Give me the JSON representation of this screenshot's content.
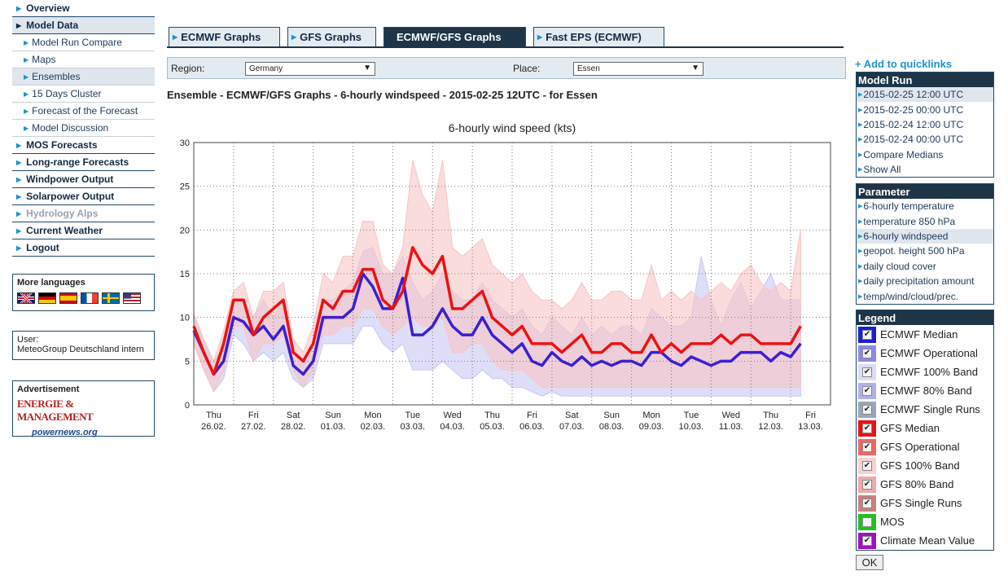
{
  "nav": {
    "items": [
      {
        "label": "Overview",
        "type": "main"
      },
      {
        "label": "Model Data",
        "type": "main",
        "active": true
      },
      {
        "label": "Model Run Compare",
        "type": "sub"
      },
      {
        "label": "Maps",
        "type": "sub"
      },
      {
        "label": "Ensembles",
        "type": "sub",
        "active": true
      },
      {
        "label": "15 Days Cluster",
        "type": "sub"
      },
      {
        "label": "Forecast of the Forecast",
        "type": "sub"
      },
      {
        "label": "Model Discussion",
        "type": "sub"
      },
      {
        "label": "MOS Forecasts",
        "type": "main"
      },
      {
        "label": "Long-range Forecasts",
        "type": "main"
      },
      {
        "label": "Windpower Output",
        "type": "main"
      },
      {
        "label": "Solarpower Output",
        "type": "main"
      },
      {
        "label": "Hydrology Alps",
        "type": "main",
        "disabled": true
      },
      {
        "label": "Current Weather",
        "type": "main"
      },
      {
        "label": "Logout",
        "type": "main"
      }
    ]
  },
  "languages": {
    "title": "More languages",
    "flags": [
      "flag-gb",
      "flag-de",
      "flag-es",
      "flag-fr",
      "flag-se",
      "flag-us"
    ]
  },
  "user": {
    "label": "User:",
    "name": "MeteoGroup Deutschland intern"
  },
  "advertisement": {
    "title": "Advertisement",
    "logo_top": "ENERGIE & MANAGEMENT",
    "logo_bottom": "powernews.org"
  },
  "tabs": [
    {
      "label": "ECMWF Graphs",
      "active": false
    },
    {
      "label": "GFS Graphs",
      "active": false
    },
    {
      "label": "ECMWF/GFS Graphs",
      "active": true
    },
    {
      "label": "Fast EPS (ECMWF)",
      "active": false
    }
  ],
  "selectors": {
    "region_label": "Region:",
    "region_value": "Germany",
    "place_label": "Place:",
    "place_value": "Essen"
  },
  "heading": "Ensemble - ECMWF/GFS Graphs - 6-hourly windspeed - 2015-02-25 12UTC - for Essen",
  "quicklinks": "+ Add to quicklinks",
  "model_run": {
    "title": "Model Run",
    "items": [
      {
        "label": "2015-02-25 12:00 UTC",
        "active": true
      },
      {
        "label": "2015-02-25 00:00 UTC"
      },
      {
        "label": "2015-02-24 12:00 UTC"
      },
      {
        "label": "2015-02-24 00:00 UTC"
      },
      {
        "label": "Compare Medians"
      },
      {
        "label": "Show All"
      }
    ]
  },
  "parameter": {
    "title": "Parameter",
    "items": [
      {
        "label": "6-hourly temperature"
      },
      {
        "label": "temperature 850 hPa"
      },
      {
        "label": "6-hourly windspeed",
        "active": true
      },
      {
        "label": "geopot. height 500 hPa"
      },
      {
        "label": "daily cloud cover"
      },
      {
        "label": "daily precipitation amount"
      },
      {
        "label": "temp/wind/cloud/prec."
      }
    ]
  },
  "legend": {
    "title": "Legend",
    "items": [
      {
        "label": "ECMWF Median",
        "color": "#1f1fd0",
        "checked": true
      },
      {
        "label": "ECMWF Operational",
        "color": "#8a8ae6",
        "checked": true
      },
      {
        "label": "ECMWF 100% Band",
        "color": "#dcdcf8",
        "checked": true
      },
      {
        "label": "ECMWF 80% Band",
        "color": "#b0b0ea",
        "checked": true
      },
      {
        "label": "ECMWF Single Runs",
        "color": "#9aa6b8",
        "checked": true
      },
      {
        "label": "GFS Median",
        "color": "#ee1111",
        "checked": true
      },
      {
        "label": "GFS Operational",
        "color": "#ee6666",
        "checked": true
      },
      {
        "label": "GFS 100% Band",
        "color": "#fad0d0",
        "checked": true
      },
      {
        "label": "GFS 80% Band",
        "color": "#f0a8a8",
        "checked": true
      },
      {
        "label": "GFS Single Runs",
        "color": "#c88080",
        "checked": true
      },
      {
        "label": "MOS",
        "color": "#22c022",
        "checked": false
      },
      {
        "label": "Climate Mean Value",
        "color": "#a010c0",
        "checked": true
      }
    ],
    "ok_label": "OK"
  },
  "chart_data": {
    "type": "line",
    "title": "6-hourly wind speed (kts)",
    "ylim": [
      0,
      30
    ],
    "yticks": [
      0,
      5,
      10,
      15,
      20,
      25,
      30
    ],
    "x_day_labels": [
      {
        "day": "Thu",
        "date": "26.02."
      },
      {
        "day": "Fri",
        "date": "27.02."
      },
      {
        "day": "Sat",
        "date": "28.02."
      },
      {
        "day": "Sun",
        "date": "01.03."
      },
      {
        "day": "Mon",
        "date": "02.03."
      },
      {
        "day": "Tue",
        "date": "03.03."
      },
      {
        "day": "Wed",
        "date": "04.03."
      },
      {
        "day": "Thu",
        "date": "05.03."
      },
      {
        "day": "Fri",
        "date": "06.03."
      },
      {
        "day": "Sat",
        "date": "07.03."
      },
      {
        "day": "Sun",
        "date": "08.03."
      },
      {
        "day": "Mon",
        "date": "09.03."
      },
      {
        "day": "Tue",
        "date": "10.03."
      },
      {
        "day": "Wed",
        "date": "11.03."
      },
      {
        "day": "Thu",
        "date": "12.03."
      },
      {
        "day": "Fri",
        "date": "13.03."
      }
    ],
    "grid": true,
    "series": [
      {
        "name": "ECMWF Median",
        "color": "#3a1fd0",
        "values": [
          8.5,
          6,
          3.5,
          5,
          10,
          9.5,
          8,
          9,
          7.5,
          9,
          4.5,
          3.5,
          5,
          10,
          10,
          10,
          11,
          15,
          13.5,
          11,
          11,
          14.5,
          8,
          8,
          9,
          11,
          9,
          8,
          8,
          10,
          8,
          7,
          6,
          7,
          5,
          4.5,
          6,
          5,
          4.5,
          5.5,
          4.5,
          5,
          4.5,
          5,
          5,
          4.5,
          6,
          6,
          5,
          4.5,
          5.5,
          5,
          4.5,
          5,
          5,
          6,
          6,
          6,
          5,
          6,
          5.5,
          7
        ]
      },
      {
        "name": "GFS Median",
        "color": "#ee1111",
        "values": [
          9,
          6,
          3.5,
          7,
          12,
          12,
          8,
          10,
          11,
          12,
          6,
          5,
          7,
          12,
          11,
          13,
          13,
          15.5,
          15.5,
          12,
          11,
          13,
          18,
          16,
          15,
          17,
          11,
          11,
          12,
          13,
          10,
          9,
          8,
          9,
          7,
          7,
          7,
          6,
          7,
          8,
          6,
          6,
          7,
          7,
          6,
          6,
          8,
          6,
          7,
          6,
          7,
          7,
          7,
          8,
          7,
          8,
          8,
          7,
          7,
          7,
          7,
          9
        ]
      },
      {
        "name": "ECMWF 100% Band",
        "color": "#c8c8f4",
        "low": [
          7,
          4,
          1.5,
          3,
          8,
          7,
          5,
          6,
          5,
          6,
          3,
          2,
          3,
          7,
          7,
          7,
          7,
          9,
          9,
          7,
          6,
          7,
          4,
          4,
          4,
          5,
          4,
          3,
          3,
          4,
          3,
          3,
          2,
          2,
          1.5,
          1,
          1.5,
          1,
          1,
          1,
          1,
          1,
          1,
          1,
          1,
          1,
          1,
          1,
          1,
          1,
          1,
          1,
          1,
          1,
          1,
          1,
          1,
          1,
          1,
          1,
          1,
          1
        ],
        "high": [
          10,
          7.5,
          5,
          6.5,
          12,
          12,
          10,
          12,
          10,
          12,
          6.5,
          5,
          7,
          12,
          12,
          13,
          14,
          17.5,
          18,
          15,
          15,
          17,
          14,
          12,
          13,
          15,
          13,
          12,
          12,
          14,
          12,
          11,
          10,
          11,
          9,
          8,
          10,
          9,
          8,
          10,
          8,
          9,
          8,
          9,
          9,
          8,
          11,
          10,
          9,
          9,
          10,
          17,
          12,
          9,
          12,
          14,
          11,
          13,
          15,
          12,
          12,
          12
        ]
      },
      {
        "name": "GFS 100% Band",
        "color": "#f8c4c4",
        "low": [
          7,
          4,
          1.5,
          4,
          9,
          9,
          5,
          7,
          7,
          8,
          4,
          2,
          4,
          8,
          8,
          9,
          9,
          11,
          11,
          9,
          8,
          9,
          10,
          9,
          9,
          10,
          6,
          6,
          7,
          7,
          5,
          4,
          4,
          4,
          3,
          2,
          2,
          2,
          2,
          2,
          2,
          2,
          2,
          2,
          2,
          2,
          2,
          2,
          2,
          2,
          2,
          2,
          2,
          2,
          2,
          2,
          2,
          2,
          2,
          2,
          2,
          2
        ],
        "high": [
          10.5,
          7.5,
          5,
          8.5,
          13,
          14,
          10,
          13,
          13,
          14,
          7.5,
          6,
          9,
          15,
          14,
          17,
          17,
          21,
          21,
          16,
          15,
          18,
          28,
          24,
          22,
          28,
          18,
          17,
          18,
          19,
          16,
          15,
          14,
          15,
          13,
          12,
          12,
          11,
          12,
          14,
          12,
          12,
          13,
          13,
          12,
          12,
          16,
          12,
          13,
          12,
          13,
          12,
          13,
          14,
          13,
          15,
          16,
          14,
          13,
          14,
          13,
          20
        ]
      }
    ]
  }
}
